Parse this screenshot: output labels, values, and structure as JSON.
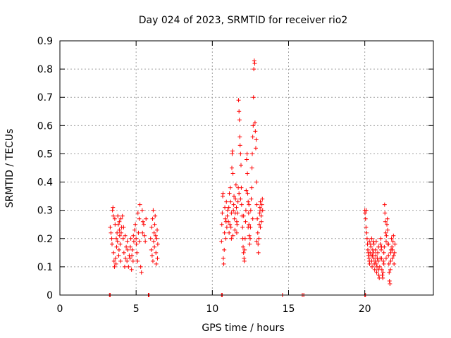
{
  "chart_data": {
    "type": "scatter",
    "title": "Day 024 of 2023, SRMTID for receiver rio2",
    "xlabel": "GPS time / hours",
    "ylabel": "SRMTID / TECUs",
    "xlim": [
      0,
      24.5
    ],
    "ylim": [
      0,
      0.9
    ],
    "x_ticks": [
      0,
      5,
      10,
      15,
      20
    ],
    "x_tick_labels": [
      "0",
      "5",
      "10",
      "15",
      "20"
    ],
    "y_ticks": [
      0,
      0.1,
      0.2,
      0.3,
      0.4,
      0.5,
      0.6,
      0.7,
      0.8,
      0.9
    ],
    "y_tick_labels": [
      "0",
      "0.1",
      "0.2",
      "0.3",
      "0.4",
      "0.5",
      "0.6",
      "0.7",
      "0.8",
      "0.9"
    ],
    "grid": true,
    "marker": "+",
    "color": "#ff0000",
    "series": [
      {
        "name": "rio2",
        "points": [
          [
            3.25,
            0.0
          ],
          [
            3.3,
            0.0
          ],
          [
            5.8,
            0.0
          ],
          [
            5.85,
            0.0
          ],
          [
            10.6,
            0.0
          ],
          [
            10.65,
            0.0
          ],
          [
            14.6,
            0.0
          ],
          [
            15.9,
            0.0
          ],
          [
            16.0,
            0.0
          ],
          [
            20.0,
            0.0
          ],
          [
            20.05,
            0.0
          ],
          [
            3.3,
            0.24
          ],
          [
            3.35,
            0.22
          ],
          [
            3.4,
            0.2
          ],
          [
            3.42,
            0.18
          ],
          [
            3.45,
            0.3
          ],
          [
            3.48,
            0.31
          ],
          [
            3.5,
            0.28
          ],
          [
            3.52,
            0.15
          ],
          [
            3.55,
            0.12
          ],
          [
            3.58,
            0.1
          ],
          [
            3.6,
            0.27
          ],
          [
            3.62,
            0.25
          ],
          [
            3.65,
            0.13
          ],
          [
            3.68,
            0.11
          ],
          [
            3.7,
            0.2
          ],
          [
            3.72,
            0.17
          ],
          [
            3.75,
            0.22
          ],
          [
            3.78,
            0.19
          ],
          [
            3.8,
            0.28
          ],
          [
            3.83,
            0.25
          ],
          [
            3.86,
            0.14
          ],
          [
            3.88,
            0.16
          ],
          [
            3.9,
            0.23
          ],
          [
            3.92,
            0.21
          ],
          [
            3.95,
            0.18
          ],
          [
            3.98,
            0.12
          ],
          [
            4.0,
            0.27
          ],
          [
            4.05,
            0.24
          ],
          [
            4.1,
            0.28
          ],
          [
            4.15,
            0.2
          ],
          [
            4.2,
            0.15
          ],
          [
            4.25,
            0.1
          ],
          [
            4.3,
            0.13
          ],
          [
            4.35,
            0.17
          ],
          [
            4.4,
            0.12
          ],
          [
            4.45,
            0.16
          ],
          [
            4.5,
            0.1
          ],
          [
            4.55,
            0.14
          ],
          [
            4.6,
            0.13
          ],
          [
            4.65,
            0.2
          ],
          [
            4.7,
            0.09
          ],
          [
            4.75,
            0.16
          ],
          [
            4.8,
            0.12
          ],
          [
            4.85,
            0.19
          ],
          [
            4.9,
            0.23
          ],
          [
            4.95,
            0.25
          ],
          [
            5.0,
            0.2
          ],
          [
            5.05,
            0.15
          ],
          [
            5.1,
            0.12
          ],
          [
            5.15,
            0.22
          ],
          [
            5.2,
            0.27
          ],
          [
            5.25,
            0.32
          ],
          [
            5.3,
            0.1
          ],
          [
            5.35,
            0.08
          ],
          [
            5.4,
            0.3
          ],
          [
            5.45,
            0.26
          ],
          [
            5.5,
            0.25
          ],
          [
            5.55,
            0.21
          ],
          [
            5.6,
            0.19
          ],
          [
            5.65,
            0.27
          ],
          [
            3.9,
            0.26
          ],
          [
            4.02,
            0.22
          ],
          [
            4.18,
            0.24
          ],
          [
            4.42,
            0.19
          ],
          [
            4.62,
            0.17
          ],
          [
            4.82,
            0.21
          ],
          [
            5.02,
            0.18
          ],
          [
            5.22,
            0.19
          ],
          [
            5.42,
            0.22
          ],
          [
            5.12,
            0.29
          ],
          [
            4.72,
            0.14
          ],
          [
            4.28,
            0.21
          ],
          [
            5.95,
            0.2
          ],
          [
            6.0,
            0.16
          ],
          [
            6.02,
            0.24
          ],
          [
            6.05,
            0.14
          ],
          [
            6.08,
            0.27
          ],
          [
            6.1,
            0.12
          ],
          [
            6.12,
            0.3
          ],
          [
            6.15,
            0.19
          ],
          [
            6.18,
            0.22
          ],
          [
            6.2,
            0.17
          ],
          [
            6.22,
            0.25
          ],
          [
            6.25,
            0.28
          ],
          [
            6.28,
            0.21
          ],
          [
            6.3,
            0.15
          ],
          [
            6.32,
            0.11
          ],
          [
            6.35,
            0.2
          ],
          [
            6.38,
            0.23
          ],
          [
            6.4,
            0.13
          ],
          [
            6.42,
            0.18
          ],
          [
            10.6,
            0.19
          ],
          [
            10.62,
            0.25
          ],
          [
            10.65,
            0.29
          ],
          [
            10.68,
            0.35
          ],
          [
            10.7,
            0.36
          ],
          [
            10.72,
            0.13
          ],
          [
            10.75,
            0.11
          ],
          [
            10.78,
            0.16
          ],
          [
            10.8,
            0.22
          ],
          [
            10.82,
            0.31
          ],
          [
            10.85,
            0.27
          ],
          [
            10.88,
            0.2
          ],
          [
            10.9,
            0.26
          ],
          [
            10.92,
            0.33
          ],
          [
            10.95,
            0.24
          ],
          [
            10.98,
            0.28
          ],
          [
            11.0,
            0.3
          ],
          [
            11.05,
            0.26
          ],
          [
            11.1,
            0.22
          ],
          [
            11.12,
            0.36
          ],
          [
            11.15,
            0.25
          ],
          [
            11.18,
            0.38
          ],
          [
            11.2,
            0.33
          ],
          [
            11.22,
            0.24
          ],
          [
            11.25,
            0.29
          ],
          [
            11.28,
            0.45
          ],
          [
            11.3,
            0.5
          ],
          [
            11.32,
            0.51
          ],
          [
            11.35,
            0.43
          ],
          [
            11.38,
            0.3
          ],
          [
            11.4,
            0.32
          ],
          [
            11.42,
            0.35
          ],
          [
            11.45,
            0.27
          ],
          [
            11.48,
            0.23
          ],
          [
            11.5,
            0.29
          ],
          [
            11.52,
            0.34
          ],
          [
            11.55,
            0.39
          ],
          [
            11.58,
            0.31
          ],
          [
            11.6,
            0.26
          ],
          [
            11.62,
            0.25
          ],
          [
            11.65,
            0.29
          ],
          [
            11.68,
            0.33
          ],
          [
            11.7,
            0.38
          ],
          [
            11.72,
            0.69
          ],
          [
            11.75,
            0.65
          ],
          [
            11.78,
            0.62
          ],
          [
            11.8,
            0.56
          ],
          [
            11.82,
            0.53
          ],
          [
            11.85,
            0.5
          ],
          [
            11.88,
            0.46
          ],
          [
            11.9,
            0.38
          ],
          [
            11.92,
            0.32
          ],
          [
            11.95,
            0.28
          ],
          [
            11.98,
            0.24
          ],
          [
            12.0,
            0.2
          ],
          [
            12.02,
            0.17
          ],
          [
            12.05,
            0.15
          ],
          [
            12.08,
            0.13
          ],
          [
            12.1,
            0.12
          ],
          [
            12.12,
            0.16
          ],
          [
            12.15,
            0.2
          ],
          [
            12.18,
            0.26
          ],
          [
            12.2,
            0.3
          ],
          [
            12.22,
            0.37
          ],
          [
            12.25,
            0.48
          ],
          [
            12.28,
            0.5
          ],
          [
            12.3,
            0.43
          ],
          [
            12.32,
            0.36
          ],
          [
            12.35,
            0.33
          ],
          [
            12.38,
            0.29
          ],
          [
            12.4,
            0.25
          ],
          [
            12.42,
            0.21
          ],
          [
            12.45,
            0.18
          ],
          [
            12.48,
            0.2
          ],
          [
            12.5,
            0.24
          ],
          [
            12.52,
            0.3
          ],
          [
            12.55,
            0.34
          ],
          [
            12.58,
            0.38
          ],
          [
            12.6,
            0.45
          ],
          [
            12.62,
            0.5
          ],
          [
            12.65,
            0.56
          ],
          [
            12.68,
            0.6
          ],
          [
            12.7,
            0.7
          ],
          [
            12.72,
            0.8
          ],
          [
            12.75,
            0.83
          ],
          [
            12.78,
            0.82
          ],
          [
            12.8,
            0.61
          ],
          [
            12.82,
            0.58
          ],
          [
            12.85,
            0.52
          ],
          [
            12.88,
            0.55
          ],
          [
            12.9,
            0.4
          ],
          [
            12.92,
            0.32
          ],
          [
            12.95,
            0.27
          ],
          [
            12.98,
            0.22
          ],
          [
            13.0,
            0.18
          ],
          [
            13.02,
            0.15
          ],
          [
            13.05,
            0.2
          ],
          [
            13.08,
            0.25
          ],
          [
            13.1,
            0.29
          ],
          [
            13.12,
            0.31
          ],
          [
            13.15,
            0.33
          ],
          [
            13.18,
            0.3
          ],
          [
            13.2,
            0.28
          ],
          [
            13.22,
            0.26
          ],
          [
            13.25,
            0.32
          ],
          [
            13.28,
            0.34
          ],
          [
            13.3,
            0.3
          ],
          [
            11.08,
            0.31
          ],
          [
            11.35,
            0.21
          ],
          [
            11.6,
            0.22
          ],
          [
            11.85,
            0.34
          ],
          [
            12.05,
            0.28
          ],
          [
            12.35,
            0.24
          ],
          [
            12.65,
            0.27
          ],
          [
            12.9,
            0.19
          ],
          [
            13.15,
            0.24
          ],
          [
            12.4,
            0.32
          ],
          [
            11.75,
            0.36
          ],
          [
            11.25,
            0.2
          ],
          [
            20.0,
            0.3
          ],
          [
            20.02,
            0.29
          ],
          [
            20.05,
            0.27
          ],
          [
            20.08,
            0.24
          ],
          [
            20.1,
            0.3
          ],
          [
            20.12,
            0.22
          ],
          [
            20.15,
            0.2
          ],
          [
            20.18,
            0.18
          ],
          [
            20.2,
            0.16
          ],
          [
            20.22,
            0.15
          ],
          [
            20.25,
            0.14
          ],
          [
            20.28,
            0.13
          ],
          [
            20.3,
            0.12
          ],
          [
            20.32,
            0.11
          ],
          [
            20.35,
            0.15
          ],
          [
            20.38,
            0.18
          ],
          [
            20.4,
            0.17
          ],
          [
            20.42,
            0.14
          ],
          [
            20.45,
            0.12
          ],
          [
            20.48,
            0.1
          ],
          [
            20.5,
            0.14
          ],
          [
            20.52,
            0.16
          ],
          [
            20.55,
            0.19
          ],
          [
            20.58,
            0.15
          ],
          [
            20.6,
            0.13
          ],
          [
            20.62,
            0.11
          ],
          [
            20.65,
            0.09
          ],
          [
            20.68,
            0.12
          ],
          [
            20.7,
            0.16
          ],
          [
            20.72,
            0.14
          ],
          [
            20.75,
            0.11
          ],
          [
            20.78,
            0.08
          ],
          [
            20.8,
            0.1
          ],
          [
            20.82,
            0.13
          ],
          [
            20.85,
            0.15
          ],
          [
            20.88,
            0.12
          ],
          [
            20.9,
            0.09
          ],
          [
            20.92,
            0.07
          ],
          [
            20.95,
            0.06
          ],
          [
            20.98,
            0.1
          ],
          [
            21.0,
            0.13
          ],
          [
            21.02,
            0.18
          ],
          [
            21.05,
            0.2
          ],
          [
            21.08,
            0.16
          ],
          [
            21.1,
            0.13
          ],
          [
            21.12,
            0.09
          ],
          [
            21.15,
            0.07
          ],
          [
            21.18,
            0.06
          ],
          [
            21.2,
            0.08
          ],
          [
            21.22,
            0.12
          ],
          [
            21.25,
            0.15
          ],
          [
            21.28,
            0.17
          ],
          [
            21.3,
            0.32
          ],
          [
            21.32,
            0.29
          ],
          [
            21.35,
            0.26
          ],
          [
            21.38,
            0.22
          ],
          [
            21.4,
            0.19
          ],
          [
            21.42,
            0.21
          ],
          [
            21.45,
            0.25
          ],
          [
            21.48,
            0.27
          ],
          [
            21.5,
            0.23
          ],
          [
            21.52,
            0.18
          ],
          [
            21.55,
            0.14
          ],
          [
            21.58,
            0.11
          ],
          [
            21.6,
            0.08
          ],
          [
            21.62,
            0.05
          ],
          [
            21.65,
            0.04
          ],
          [
            21.68,
            0.09
          ],
          [
            21.7,
            0.12
          ],
          [
            21.72,
            0.16
          ],
          [
            21.75,
            0.2
          ],
          [
            21.78,
            0.17
          ],
          [
            21.8,
            0.13
          ],
          [
            21.82,
            0.16
          ],
          [
            21.85,
            0.19
          ],
          [
            21.88,
            0.21
          ],
          [
            21.9,
            0.14
          ],
          [
            21.92,
            0.11
          ],
          [
            21.95,
            0.15
          ],
          [
            21.98,
            0.18
          ],
          [
            20.3,
            0.19
          ],
          [
            20.6,
            0.18
          ],
          [
            20.9,
            0.17
          ],
          [
            21.1,
            0.17
          ],
          [
            21.4,
            0.13
          ],
          [
            21.7,
            0.15
          ],
          [
            20.45,
            0.2
          ],
          [
            20.75,
            0.19
          ],
          [
            21.25,
            0.11
          ],
          [
            21.55,
            0.18
          ]
        ]
      }
    ]
  }
}
